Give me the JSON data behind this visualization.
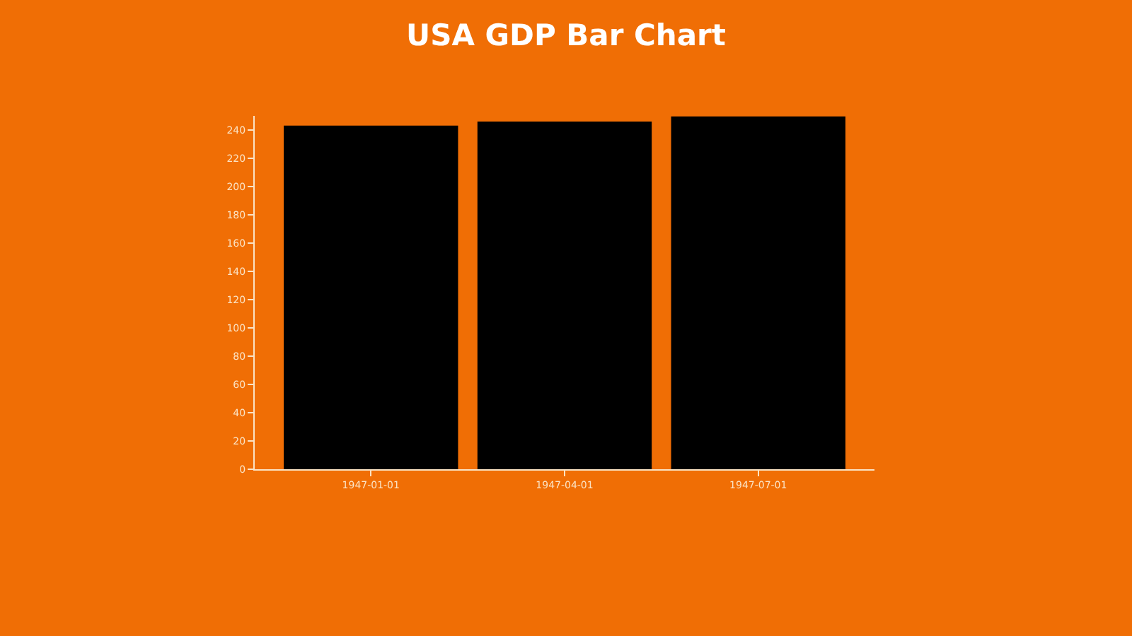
{
  "chart_data": {
    "type": "bar",
    "title": "USA GDP Bar Chart",
    "categories": [
      "1947-01-01",
      "1947-04-01",
      "1947-07-01"
    ],
    "values": [
      243.1,
      246.0,
      249.6
    ],
    "color": "#000000",
    "ylim": [
      0,
      250
    ],
    "yticks": [
      0,
      20,
      40,
      60,
      80,
      100,
      120,
      140,
      160,
      180,
      200,
      220,
      240
    ],
    "grid": false
  }
}
